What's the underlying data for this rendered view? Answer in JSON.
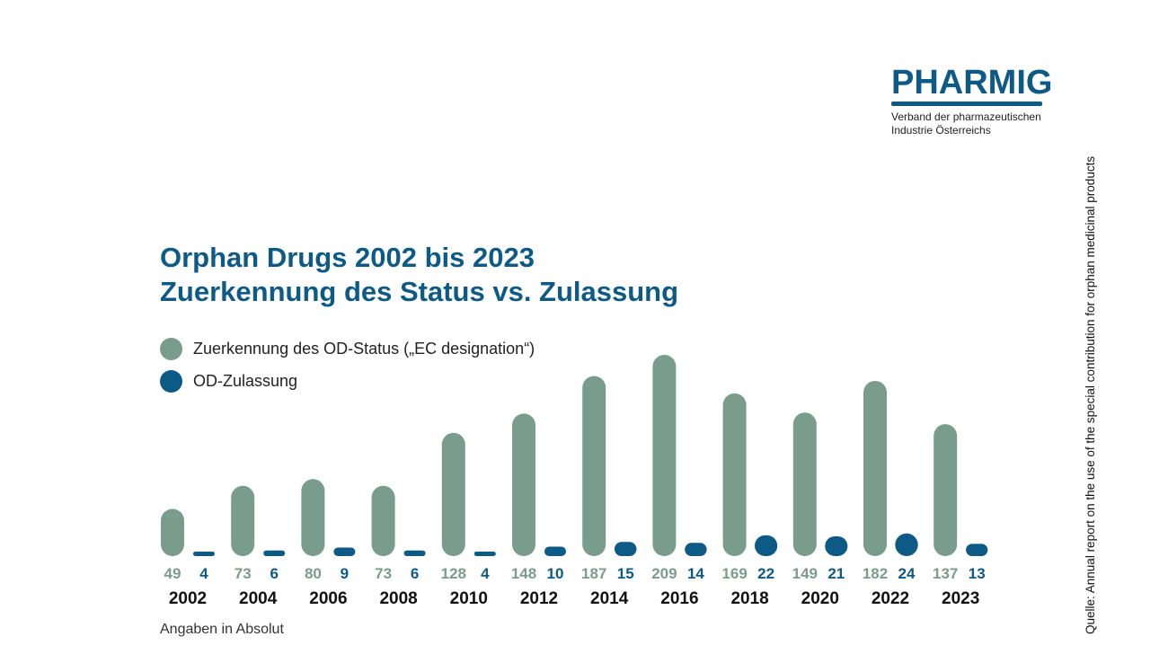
{
  "logo": {
    "name": "PHARMIG",
    "line1": "Verband der pharmazeutischen",
    "line2": "Industrie Österreichs"
  },
  "title_line1": "Orphan Drugs 2002 bis 2023",
  "title_line2": "Zuerkennung des Status vs. Zulassung",
  "footnote": "Angaben in Absolut",
  "source": "Quelle: Annual report on the use of the special contribution for orphan medicinal products",
  "colors": {
    "status": "#7a9c8c",
    "approval": "#0d5a86",
    "title": "#0d5a86"
  },
  "chart_data": {
    "type": "bar",
    "title": "Orphan Drugs 2002 bis 2023 Zuerkennung des Status vs. Zulassung",
    "categories": [
      "2002",
      "2004",
      "2006",
      "2008",
      "2010",
      "2012",
      "2014",
      "2016",
      "2018",
      "2020",
      "2022",
      "2023"
    ],
    "series": [
      {
        "name": "Zuerkennung des OD-Status („EC designation“)",
        "values": [
          49,
          73,
          80,
          73,
          128,
          148,
          187,
          209,
          169,
          149,
          182,
          137
        ]
      },
      {
        "name": "OD-Zulassung",
        "values": [
          4,
          6,
          9,
          6,
          4,
          10,
          15,
          14,
          22,
          21,
          24,
          13
        ]
      }
    ],
    "legend": "top-left",
    "grid": false,
    "xlabel": "",
    "ylabel": ""
  }
}
